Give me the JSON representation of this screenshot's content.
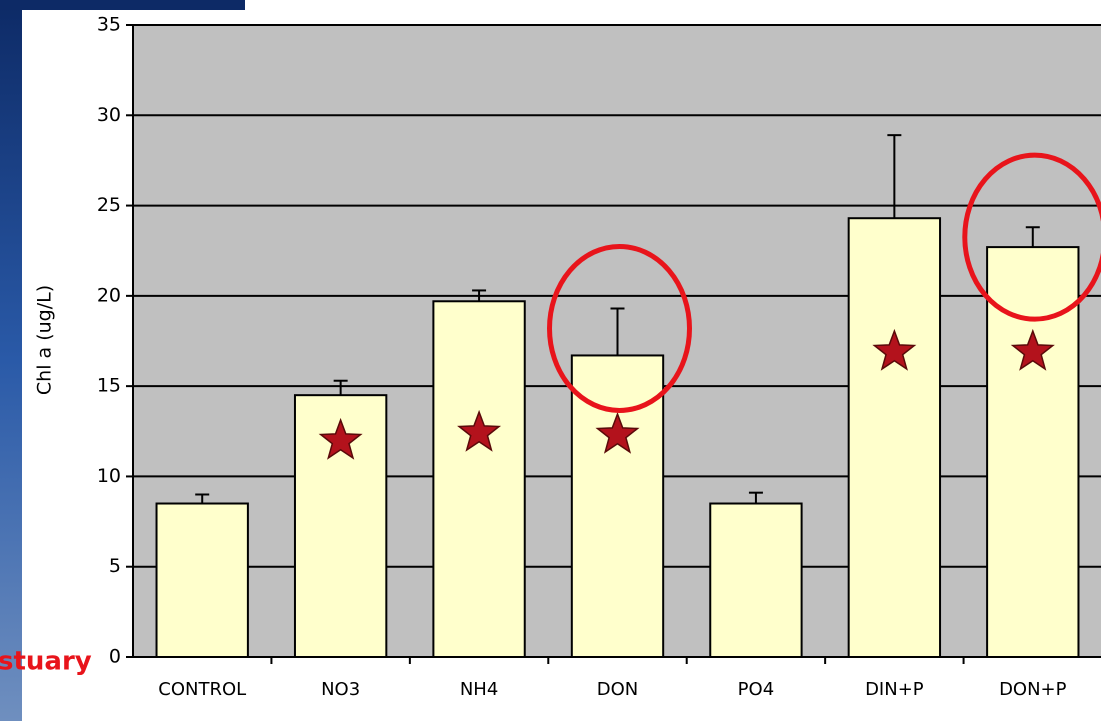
{
  "chart_data": {
    "type": "bar",
    "y_label": "Chl a (ug/L)",
    "categories": [
      "CONTROL",
      "NO3",
      "NH4",
      "DON",
      "PO4",
      "DIN+P",
      "DON+P"
    ],
    "values": [
      8.5,
      14.5,
      19.7,
      16.7,
      8.5,
      24.3,
      22.7
    ],
    "errors": [
      0.5,
      0.8,
      0.6,
      2.6,
      0.6,
      4.6,
      1.1
    ],
    "significant": [
      false,
      true,
      true,
      true,
      false,
      true,
      true
    ],
    "highlighted": [
      false,
      false,
      false,
      true,
      false,
      false,
      true
    ],
    "color": "#ffffcc",
    "plot_background": "#c0c0c0",
    "ylim": [
      0,
      35
    ],
    "yticks": [
      0,
      5,
      10,
      15,
      20,
      25,
      30,
      35
    ],
    "grid": true,
    "annotation": "stuary"
  }
}
